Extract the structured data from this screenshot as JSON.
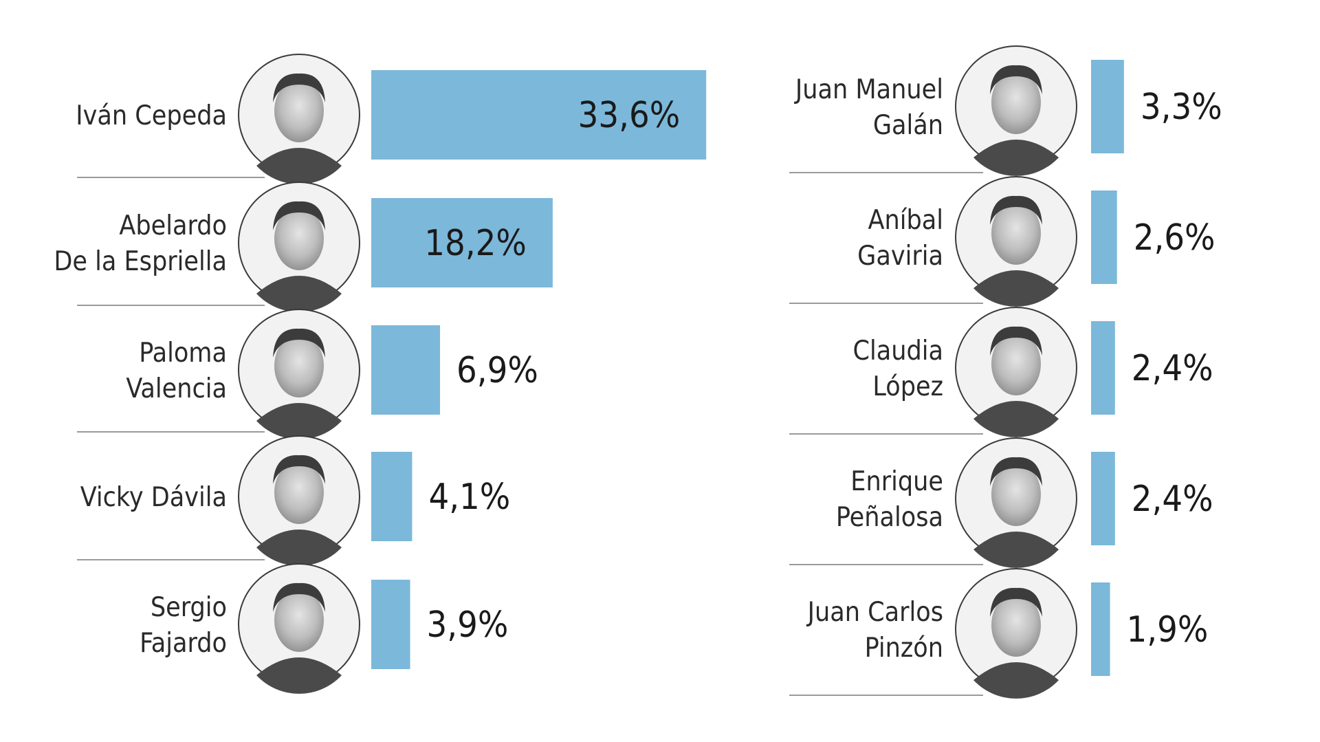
{
  "chart_data": {
    "type": "bar",
    "orientation": "horizontal",
    "value_unit": "%",
    "bar_color": "#7cb8da",
    "grid": false,
    "columns": [
      {
        "entries": [
          {
            "name_lines": [
              "Iván Cepeda"
            ],
            "value": 33.6,
            "label": "33,6%",
            "label_position": "inside"
          },
          {
            "name_lines": [
              "Abelardo",
              "De la Espriella"
            ],
            "value": 18.2,
            "label": "18,2%",
            "label_position": "inside"
          },
          {
            "name_lines": [
              "Paloma",
              "Valencia"
            ],
            "value": 6.9,
            "label": "6,9%",
            "label_position": "outside"
          },
          {
            "name_lines": [
              "Vicky Dávila"
            ],
            "value": 4.1,
            "label": "4,1%",
            "label_position": "outside"
          },
          {
            "name_lines": [
              "Sergio",
              "Fajardo"
            ],
            "value": 3.9,
            "label": "3,9%",
            "label_position": "outside"
          }
        ]
      },
      {
        "entries": [
          {
            "name_lines": [
              "Juan Manuel",
              "Galán"
            ],
            "value": 3.3,
            "label": "3,3%",
            "label_position": "outside"
          },
          {
            "name_lines": [
              "Aníbal",
              "Gaviria"
            ],
            "value": 2.6,
            "label": "2,6%",
            "label_position": "outside"
          },
          {
            "name_lines": [
              "Claudia",
              "López"
            ],
            "value": 2.4,
            "label": "2,4%",
            "label_position": "outside"
          },
          {
            "name_lines": [
              "Enrique",
              "Peñalosa"
            ],
            "value": 2.4,
            "label": "2,4%",
            "label_position": "outside"
          },
          {
            "name_lines": [
              "Juan Carlos",
              "Pinzón"
            ],
            "value": 1.9,
            "label": "1,9%",
            "label_position": "outside"
          }
        ]
      }
    ]
  }
}
